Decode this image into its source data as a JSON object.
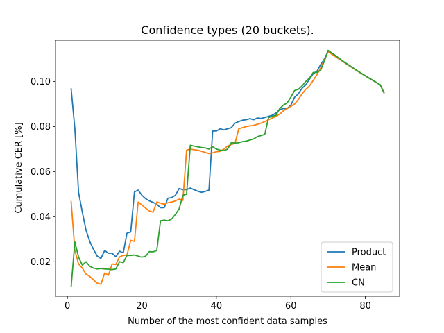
{
  "chart_data": {
    "type": "line",
    "title": "Confidence types (20 buckets).",
    "xlabel": "Number of the most confident data samples",
    "ylabel": "Cumulative CER [%]",
    "xlim": [
      -3.2,
      89.2
    ],
    "ylim": [
      0.0047,
      0.1183
    ],
    "xticks": [
      {
        "value": 0,
        "label": "0"
      },
      {
        "value": 20,
        "label": "20"
      },
      {
        "value": 40,
        "label": "40"
      },
      {
        "value": 60,
        "label": "60"
      },
      {
        "value": 80,
        "label": "80"
      }
    ],
    "yticks": [
      {
        "value": 0.02,
        "label": "0.02"
      },
      {
        "value": 0.04,
        "label": "0.04"
      },
      {
        "value": 0.06,
        "label": "0.06"
      },
      {
        "value": 0.08,
        "label": "0.08"
      },
      {
        "value": 0.1,
        "label": "0.10"
      }
    ],
    "grid": false,
    "legend_position": "lower-right",
    "series": [
      {
        "name": "Product",
        "color": "#1f77b4",
        "points": [
          [
            1,
            0.0967
          ],
          [
            2,
            0.079
          ],
          [
            3,
            0.0507
          ],
          [
            4,
            0.042
          ],
          [
            5,
            0.034
          ],
          [
            6,
            0.029
          ],
          [
            7,
            0.0255
          ],
          [
            8,
            0.0225
          ],
          [
            9,
            0.0215
          ],
          [
            10,
            0.025
          ],
          [
            11,
            0.0238
          ],
          [
            12,
            0.0238
          ],
          [
            13,
            0.0222
          ],
          [
            14,
            0.0247
          ],
          [
            15,
            0.024
          ],
          [
            16,
            0.0327
          ],
          [
            17,
            0.0332
          ],
          [
            18,
            0.051
          ],
          [
            19,
            0.0518
          ],
          [
            20,
            0.0495
          ],
          [
            21,
            0.048
          ],
          [
            22,
            0.047
          ],
          [
            23,
            0.0463
          ],
          [
            24,
            0.0455
          ],
          [
            25,
            0.044
          ],
          [
            26,
            0.044
          ],
          [
            27,
            0.0482
          ],
          [
            28,
            0.0485
          ],
          [
            29,
            0.0495
          ],
          [
            30,
            0.0525
          ],
          [
            31,
            0.052
          ],
          [
            32,
            0.052
          ],
          [
            33,
            0.0527
          ],
          [
            34,
            0.052
          ],
          [
            35,
            0.0513
          ],
          [
            36,
            0.0508
          ],
          [
            37,
            0.0512
          ],
          [
            38,
            0.0518
          ],
          [
            39,
            0.078
          ],
          [
            40,
            0.078
          ],
          [
            41,
            0.079
          ],
          [
            42,
            0.0785
          ],
          [
            43,
            0.079
          ],
          [
            44,
            0.0795
          ],
          [
            45,
            0.0815
          ],
          [
            46,
            0.0822
          ],
          [
            47,
            0.0828
          ],
          [
            48,
            0.083
          ],
          [
            49,
            0.0835
          ],
          [
            50,
            0.083
          ],
          [
            51,
            0.0838
          ],
          [
            52,
            0.0836
          ],
          [
            53,
            0.084
          ],
          [
            54,
            0.0845
          ],
          [
            55,
            0.085
          ],
          [
            56,
            0.086
          ],
          [
            57,
            0.0875
          ],
          [
            58,
            0.088
          ],
          [
            59,
            0.088
          ],
          [
            60,
            0.0895
          ],
          [
            61,
            0.093
          ],
          [
            62,
            0.0945
          ],
          [
            63,
            0.097
          ],
          [
            64,
            0.0985
          ],
          [
            65,
            0.101
          ],
          [
            66,
            0.1035
          ],
          [
            67,
            0.1045
          ],
          [
            68,
            0.1075
          ],
          [
            69,
            0.11
          ],
          [
            70,
            0.1135
          ],
          [
            72,
            0.1113
          ],
          [
            74,
            0.109
          ],
          [
            76,
            0.1068
          ],
          [
            78,
            0.1045
          ],
          [
            80,
            0.1025
          ],
          [
            82,
            0.1005
          ],
          [
            84,
            0.0985
          ],
          [
            85,
            0.095
          ]
        ]
      },
      {
        "name": "Mean",
        "color": "#ff7f0e",
        "points": [
          [
            1,
            0.0467
          ],
          [
            2,
            0.025
          ],
          [
            3,
            0.019
          ],
          [
            4,
            0.0172
          ],
          [
            5,
            0.0145
          ],
          [
            6,
            0.0135
          ],
          [
            7,
            0.012
          ],
          [
            8,
            0.0105
          ],
          [
            9,
            0.01
          ],
          [
            10,
            0.015
          ],
          [
            11,
            0.014
          ],
          [
            12,
            0.019
          ],
          [
            13,
            0.0188
          ],
          [
            14,
            0.0222
          ],
          [
            15,
            0.0228
          ],
          [
            16,
            0.023
          ],
          [
            17,
            0.0295
          ],
          [
            18,
            0.029
          ],
          [
            19,
            0.0465
          ],
          [
            20,
            0.0452
          ],
          [
            21,
            0.0438
          ],
          [
            22,
            0.0425
          ],
          [
            23,
            0.042
          ],
          [
            24,
            0.0465
          ],
          [
            25,
            0.046
          ],
          [
            26,
            0.0455
          ],
          [
            27,
            0.0462
          ],
          [
            28,
            0.0465
          ],
          [
            29,
            0.047
          ],
          [
            30,
            0.0478
          ],
          [
            31,
            0.0472
          ],
          [
            32,
            0.0695
          ],
          [
            33,
            0.07
          ],
          [
            34,
            0.0697
          ],
          [
            35,
            0.0695
          ],
          [
            36,
            0.069
          ],
          [
            37,
            0.0685
          ],
          [
            38,
            0.068
          ],
          [
            39,
            0.0683
          ],
          [
            40,
            0.0688
          ],
          [
            41,
            0.069
          ],
          [
            42,
            0.07
          ],
          [
            43,
            0.0713
          ],
          [
            44,
            0.072
          ],
          [
            45,
            0.0725
          ],
          [
            46,
            0.079
          ],
          [
            47,
            0.0795
          ],
          [
            48,
            0.08
          ],
          [
            49,
            0.0803
          ],
          [
            50,
            0.0805
          ],
          [
            51,
            0.081
          ],
          [
            52,
            0.0815
          ],
          [
            53,
            0.0822
          ],
          [
            54,
            0.083
          ],
          [
            55,
            0.0838
          ],
          [
            56,
            0.0845
          ],
          [
            57,
            0.0855
          ],
          [
            58,
            0.087
          ],
          [
            59,
            0.088
          ],
          [
            60,
            0.089
          ],
          [
            61,
            0.09
          ],
          [
            62,
            0.092
          ],
          [
            63,
            0.0945
          ],
          [
            64,
            0.0965
          ],
          [
            65,
            0.098
          ],
          [
            66,
            0.1005
          ],
          [
            67,
            0.103
          ],
          [
            68,
            0.106
          ],
          [
            69,
            0.1095
          ],
          [
            70,
            0.1132
          ],
          [
            72,
            0.111
          ],
          [
            74,
            0.1088
          ],
          [
            76,
            0.1066
          ],
          [
            78,
            0.1045
          ],
          [
            80,
            0.1025
          ],
          [
            82,
            0.1005
          ],
          [
            84,
            0.0985
          ],
          [
            85,
            0.095
          ]
        ]
      },
      {
        "name": "CN",
        "color": "#2ca02c",
        "points": [
          [
            1,
            0.009
          ],
          [
            2,
            0.0288
          ],
          [
            3,
            0.022
          ],
          [
            4,
            0.0185
          ],
          [
            5,
            0.02
          ],
          [
            6,
            0.018
          ],
          [
            7,
            0.0172
          ],
          [
            8,
            0.0168
          ],
          [
            9,
            0.017
          ],
          [
            10,
            0.0168
          ],
          [
            11,
            0.0167
          ],
          [
            12,
            0.0165
          ],
          [
            13,
            0.0168
          ],
          [
            14,
            0.02
          ],
          [
            15,
            0.0196
          ],
          [
            16,
            0.0228
          ],
          [
            17,
            0.0228
          ],
          [
            18,
            0.023
          ],
          [
            19,
            0.0225
          ],
          [
            20,
            0.022
          ],
          [
            21,
            0.0225
          ],
          [
            22,
            0.0245
          ],
          [
            23,
            0.0244
          ],
          [
            24,
            0.025
          ],
          [
            25,
            0.0382
          ],
          [
            26,
            0.0385
          ],
          [
            27,
            0.0382
          ],
          [
            28,
            0.039
          ],
          [
            29,
            0.041
          ],
          [
            30,
            0.0435
          ],
          [
            31,
            0.0495
          ],
          [
            32,
            0.05
          ],
          [
            33,
            0.0717
          ],
          [
            34,
            0.0713
          ],
          [
            35,
            0.071
          ],
          [
            36,
            0.0707
          ],
          [
            37,
            0.0705
          ],
          [
            38,
            0.07
          ],
          [
            39,
            0.071
          ],
          [
            40,
            0.07
          ],
          [
            41,
            0.0695
          ],
          [
            42,
            0.0693
          ],
          [
            43,
            0.07
          ],
          [
            44,
            0.0728
          ],
          [
            45,
            0.0727
          ],
          [
            46,
            0.0728
          ],
          [
            47,
            0.0733
          ],
          [
            48,
            0.0735
          ],
          [
            49,
            0.074
          ],
          [
            50,
            0.0745
          ],
          [
            51,
            0.0755
          ],
          [
            52,
            0.076
          ],
          [
            53,
            0.0765
          ],
          [
            54,
            0.084
          ],
          [
            55,
            0.0845
          ],
          [
            56,
            0.085
          ],
          [
            57,
            0.088
          ],
          [
            58,
            0.0895
          ],
          [
            59,
            0.0905
          ],
          [
            60,
            0.093
          ],
          [
            61,
            0.096
          ],
          [
            62,
            0.0965
          ],
          [
            63,
            0.098
          ],
          [
            64,
            0.1
          ],
          [
            65,
            0.1015
          ],
          [
            66,
            0.104
          ],
          [
            67,
            0.104
          ],
          [
            68,
            0.105
          ],
          [
            69,
            0.109
          ],
          [
            70,
            0.1138
          ],
          [
            72,
            0.1115
          ],
          [
            74,
            0.109
          ],
          [
            76,
            0.1068
          ],
          [
            78,
            0.1046
          ],
          [
            80,
            0.1025
          ],
          [
            82,
            0.1005
          ],
          [
            84,
            0.0985
          ],
          [
            85,
            0.095
          ]
        ]
      }
    ]
  }
}
